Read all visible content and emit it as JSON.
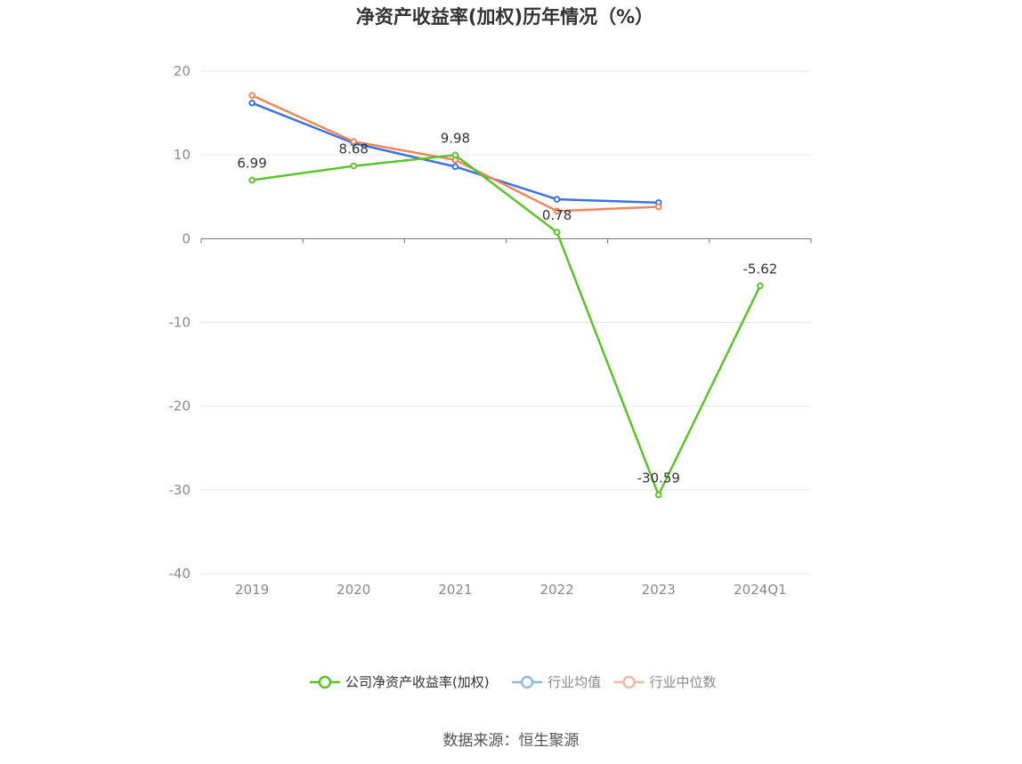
{
  "chart_data": {
    "type": "line",
    "title": "净资产收益率(加权)历年情况（%）",
    "categories": [
      "2019",
      "2020",
      "2021",
      "2022",
      "2023",
      "2024Q1"
    ],
    "ylim": [
      -40,
      20
    ],
    "yticks": [
      20,
      10,
      0,
      -10,
      -20,
      -30,
      -40
    ],
    "grid": true,
    "legend_position": "bottom-center",
    "series": [
      {
        "name": "公司净资产收益率(加权)",
        "color": "#5cc42b",
        "values": [
          6.99,
          8.68,
          9.98,
          0.78,
          -30.59,
          -5.62
        ],
        "show_labels": true,
        "data_labels": [
          "6.99",
          "8.68",
          "9.98",
          "0.78",
          "-30.59",
          "-5.62"
        ]
      },
      {
        "name": "行业均值",
        "color": "#3d74db",
        "values": [
          16.2,
          11.4,
          8.6,
          4.7,
          4.3,
          null
        ],
        "show_labels": false
      },
      {
        "name": "行业中位数",
        "color": "#f0875a",
        "values": [
          17.1,
          11.6,
          9.4,
          3.3,
          3.8,
          null
        ],
        "show_labels": false
      }
    ],
    "legend_colors": {
      "公司净资产收益率(加权)": "#5cc42b",
      "行业均值": "#93b6ec",
      "行业中位数": "#f5b9a0"
    }
  },
  "footer": {
    "source": "数据来源：恒生聚源"
  }
}
